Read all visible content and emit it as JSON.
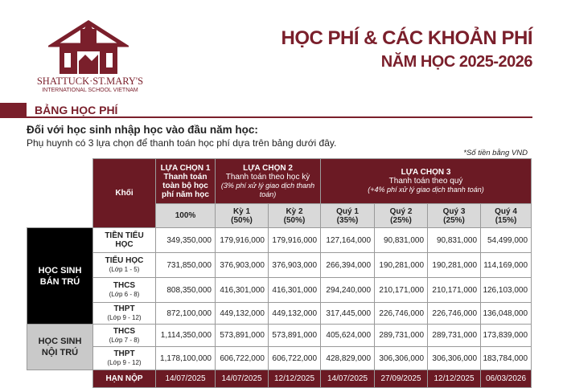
{
  "header": {
    "school_name": "SHATTUCK·ST.MARY'S",
    "school_sub": "INTERNATIONAL SCHOOL VIETNAM",
    "title": "HỌC PHÍ & CÁC KHOẢN PHÍ",
    "subtitle": "NĂM HỌC 2025-2026"
  },
  "section_title": "BẢNG HỌC PHÍ",
  "intro_bold": "Đối với học sinh nhập học vào đầu năm học:",
  "intro": "Phụ huynh có 3 lựa chọn để thanh toán học phí dựa trên bảng dưới đây.",
  "note": "*Số tiền bằng VND",
  "table": {
    "khoi": "Khối",
    "options": [
      {
        "title": "LỰA CHỌN 1",
        "desc": "Thanh toán toàn bộ học phí năm học"
      },
      {
        "title": "LỰA CHỌN 2",
        "desc": "Thanh toán theo học kỳ",
        "note": "(3% phí xử lý giao dịch thanh toán)"
      },
      {
        "title": "LỰA CHỌN 3",
        "desc": "Thanh toán theo quý",
        "note": "(+4% phí xử lý giao dịch thanh toán)"
      }
    ],
    "columns": [
      {
        "name": "100%"
      },
      {
        "name": "Kỳ 1",
        "pct": "(50%)"
      },
      {
        "name": "Kỳ 2",
        "pct": "(50%)"
      },
      {
        "name": "Quý 1",
        "pct": "(35%)"
      },
      {
        "name": "Quý 2",
        "pct": "(25%)"
      },
      {
        "name": "Quý 3",
        "pct": "(25%)"
      },
      {
        "name": "Quý 4",
        "pct": "(15%)"
      }
    ],
    "groups": [
      {
        "label": "HỌC SINH BÁN TRÚ"
      },
      {
        "label": "HỌC SINH NỘI TRÚ"
      }
    ],
    "rows": [
      {
        "level": "TIỀN TIỂU HỌC",
        "values": [
          "349,350,000",
          "179,916,000",
          "179,916,000",
          "127,164,000",
          "90,831,000",
          "90,831,000",
          "54,499,000"
        ]
      },
      {
        "level": "TIỂU HỌC",
        "grades": "(Lớp 1 - 5)",
        "values": [
          "731,850,000",
          "376,903,000",
          "376,903,000",
          "266,394,000",
          "190,281,000",
          "190,281,000",
          "114,169,000"
        ]
      },
      {
        "level": "THCS",
        "grades": "(Lớp 6 - 8)",
        "values": [
          "808,350,000",
          "416,301,000",
          "416,301,000",
          "294,240,000",
          "210,171,000",
          "210,171,000",
          "126,103,000"
        ]
      },
      {
        "level": "THPT",
        "grades": "(Lớp 9 - 12)",
        "values": [
          "872,100,000",
          "449,132,000",
          "449,132,000",
          "317,445,000",
          "226,746,000",
          "226,746,000",
          "136,048,000"
        ]
      },
      {
        "level": "THCS",
        "grades": "(Lớp 7 - 8)",
        "values": [
          "1,114,350,000",
          "573,891,000",
          "573,891,000",
          "405,624,000",
          "289,731,000",
          "289,731,000",
          "173,839,000"
        ]
      },
      {
        "level": "THPT",
        "grades": "(Lớp 9 - 12)",
        "values": [
          "1,178,100,000",
          "606,722,000",
          "606,722,000",
          "428,829,000",
          "306,306,000",
          "306,306,000",
          "183,784,000"
        ]
      }
    ],
    "deadline": {
      "label": "HẠN NỘP",
      "values": [
        "14/07/2025",
        "14/07/2025",
        "12/12/2025",
        "14/07/2025",
        "27/09/2025",
        "12/12/2025",
        "06/03/2026"
      ]
    }
  }
}
